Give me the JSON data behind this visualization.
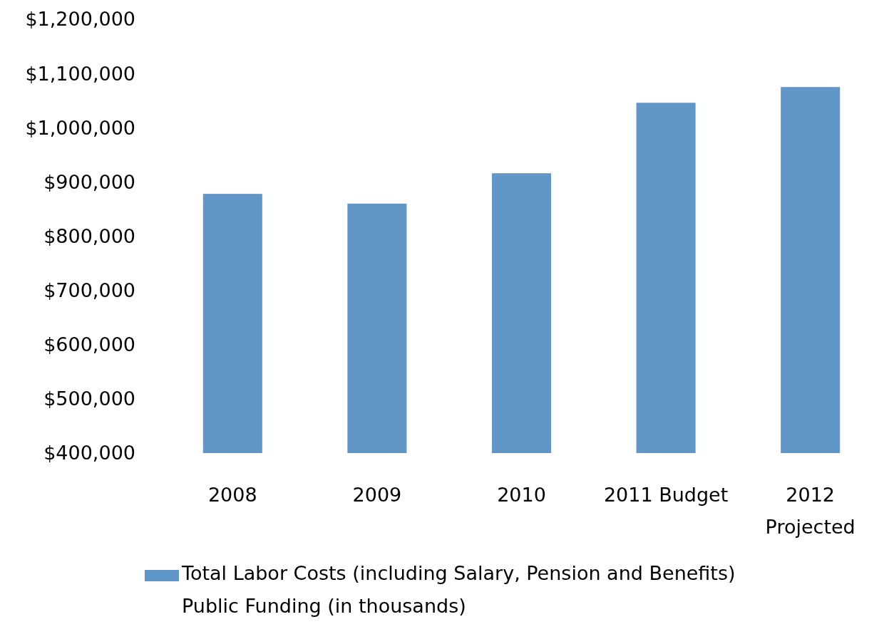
{
  "chart_data": {
    "type": "bar",
    "categories": [
      "2008",
      "2009",
      "2010",
      "2011 Budget",
      "2012 Projected"
    ],
    "series": [
      {
        "name": "Total Labor Costs (including Salary, Pension and Benefits) Public Funding (in thousands)",
        "color": "#6097c8",
        "values": [
          878000,
          860000,
          916000,
          1046000,
          1075000
        ]
      }
    ],
    "ylim": [
      400000,
      1200000
    ],
    "yticks": [
      {
        "value": 400000,
        "label": "$400,000"
      },
      {
        "value": 500000,
        "label": "$500,000"
      },
      {
        "value": 600000,
        "label": "$600,000"
      },
      {
        "value": 700000,
        "label": "$700,000"
      },
      {
        "value": 800000,
        "label": "$800,000"
      },
      {
        "value": 900000,
        "label": "$900,000"
      },
      {
        "value": 1000000,
        "label": "$1,000,000"
      },
      {
        "value": 1100000,
        "label": "$1,100,000"
      },
      {
        "value": 1200000,
        "label": "$1,200,000"
      }
    ],
    "legend": "bottom",
    "grid": false
  }
}
